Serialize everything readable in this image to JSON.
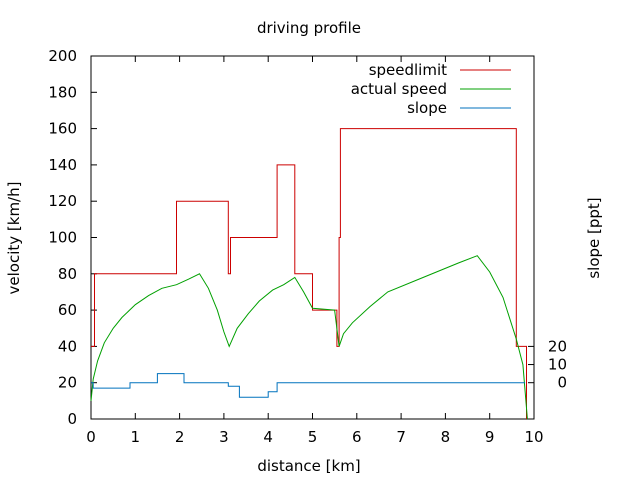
{
  "chart_data": {
    "type": "line",
    "title": "driving profile",
    "xlabel": "distance [km]",
    "ylabel": "velocity [km/h]",
    "y2label": "slope [ppt]",
    "xlim": [
      0,
      10
    ],
    "ylim": [
      0,
      200
    ],
    "xticks": [
      "0",
      "1",
      "2",
      "3",
      "4",
      "5",
      "6",
      "7",
      "8",
      "9",
      "10"
    ],
    "yticks": [
      "0",
      "20",
      "40",
      "60",
      "80",
      "100",
      "120",
      "140",
      "160",
      "180",
      "200"
    ],
    "y2ticks": [
      {
        "label": "0",
        "at": 20
      },
      {
        "label": "10",
        "at": 30
      },
      {
        "label": "20",
        "at": 40
      }
    ],
    "grid": false,
    "legend": "top-right",
    "series": [
      {
        "name": "speedlimit",
        "color": "#cc0000",
        "style": "step",
        "points": [
          [
            0,
            40
          ],
          [
            0.08,
            40
          ],
          [
            0.08,
            80
          ],
          [
            1.93,
            80
          ],
          [
            1.93,
            120
          ],
          [
            3.1,
            120
          ],
          [
            3.1,
            80
          ],
          [
            3.15,
            80
          ],
          [
            3.15,
            100
          ],
          [
            4.2,
            100
          ],
          [
            4.2,
            140
          ],
          [
            4.6,
            140
          ],
          [
            4.6,
            80
          ],
          [
            5.0,
            80
          ],
          [
            5.0,
            60
          ],
          [
            5.55,
            60
          ],
          [
            5.55,
            40
          ],
          [
            5.6,
            40
          ],
          [
            5.6,
            100
          ],
          [
            5.63,
            100
          ],
          [
            5.63,
            160
          ],
          [
            9.6,
            160
          ],
          [
            9.6,
            40
          ],
          [
            9.83,
            40
          ],
          [
            9.83,
            0
          ]
        ]
      },
      {
        "name": "actual speed",
        "color": "#00a000",
        "style": "line",
        "points": [
          [
            0,
            10
          ],
          [
            0.05,
            22
          ],
          [
            0.15,
            32
          ],
          [
            0.3,
            42
          ],
          [
            0.5,
            50
          ],
          [
            0.7,
            56
          ],
          [
            1.0,
            63
          ],
          [
            1.3,
            68
          ],
          [
            1.6,
            72
          ],
          [
            1.93,
            74
          ],
          [
            2.2,
            77
          ],
          [
            2.45,
            80
          ],
          [
            2.65,
            72
          ],
          [
            2.85,
            60
          ],
          [
            3.0,
            48
          ],
          [
            3.12,
            40
          ],
          [
            3.3,
            50
          ],
          [
            3.55,
            58
          ],
          [
            3.8,
            65
          ],
          [
            4.1,
            71
          ],
          [
            4.35,
            74
          ],
          [
            4.6,
            78
          ],
          [
            4.8,
            70
          ],
          [
            5.0,
            61
          ],
          [
            5.5,
            60
          ],
          [
            5.6,
            40
          ],
          [
            5.7,
            47
          ],
          [
            5.9,
            53
          ],
          [
            6.3,
            62
          ],
          [
            6.7,
            70
          ],
          [
            7.5,
            78
          ],
          [
            8.3,
            86
          ],
          [
            8.72,
            90
          ],
          [
            9.0,
            81
          ],
          [
            9.3,
            67
          ],
          [
            9.6,
            44
          ],
          [
            9.75,
            30
          ],
          [
            9.85,
            0
          ]
        ]
      },
      {
        "name": "slope",
        "color": "#0072bd",
        "style": "step",
        "points": [
          [
            0,
            20
          ],
          [
            0.05,
            20
          ],
          [
            0.05,
            17
          ],
          [
            0.88,
            17
          ],
          [
            0.88,
            20
          ],
          [
            1.5,
            20
          ],
          [
            1.5,
            25
          ],
          [
            2.1,
            25
          ],
          [
            2.1,
            20
          ],
          [
            3.1,
            20
          ],
          [
            3.1,
            18
          ],
          [
            3.35,
            18
          ],
          [
            3.35,
            12
          ],
          [
            4.0,
            12
          ],
          [
            4.0,
            15
          ],
          [
            4.2,
            15
          ],
          [
            4.2,
            20
          ],
          [
            9.8,
            20
          ]
        ]
      }
    ]
  }
}
